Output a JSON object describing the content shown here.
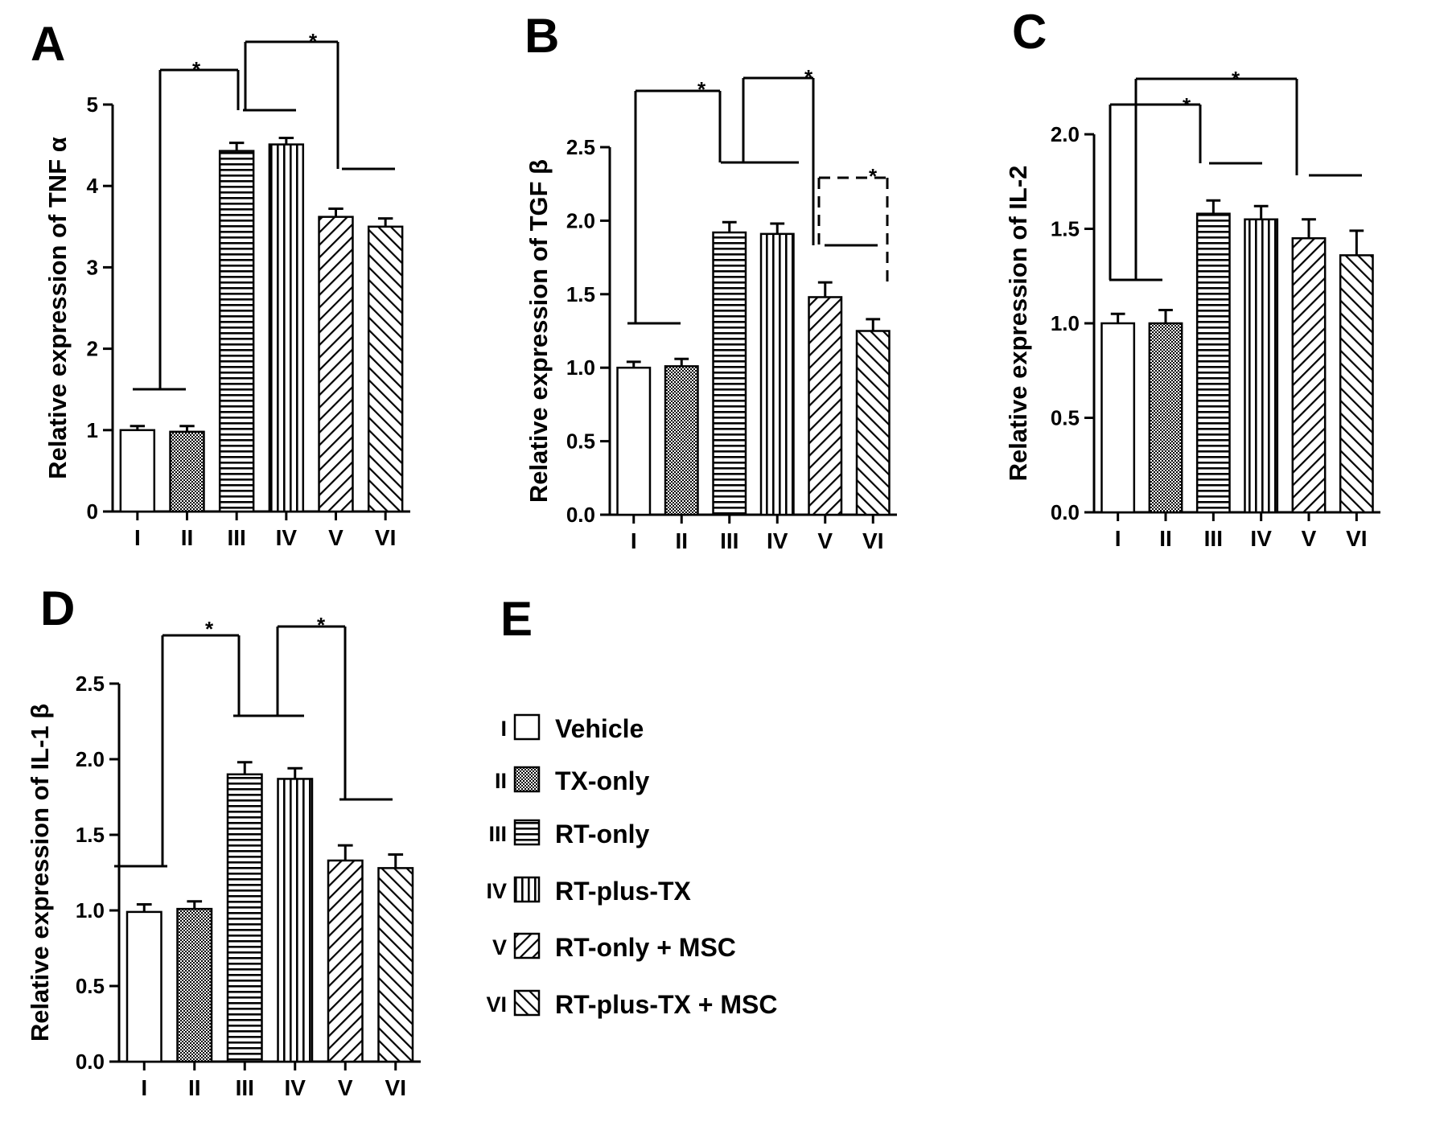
{
  "legend": {
    "letter": "E",
    "items": [
      {
        "roman": "I",
        "label": "Vehicle",
        "pattern": "none"
      },
      {
        "roman": "II",
        "label": "TX-only",
        "pattern": "dots"
      },
      {
        "roman": "III",
        "label": "RT-only",
        "pattern": "hlines"
      },
      {
        "roman": "IV",
        "label": "RT-plus-TX",
        "pattern": "vlines"
      },
      {
        "roman": "V",
        "label": "RT-only + MSC",
        "pattern": "fdiag"
      },
      {
        "roman": "VI",
        "label": "RT-plus-TX + MSC",
        "pattern": "bdiag"
      }
    ]
  },
  "chart_data": [
    {
      "id": "A",
      "type": "bar",
      "title": "A",
      "ylabel": "Relative expression of TNF α",
      "categories": [
        "I",
        "II",
        "III",
        "IV",
        "V",
        "VI"
      ],
      "values": [
        1.0,
        0.98,
        4.43,
        4.51,
        3.62,
        3.5
      ],
      "errors": [
        0.05,
        0.07,
        0.1,
        0.08,
        0.1,
        0.1
      ],
      "ylim": [
        0,
        5
      ],
      "yticks": [
        0,
        1,
        2,
        3,
        4,
        5
      ],
      "ytick_labels": [
        "0",
        "1",
        "2",
        "3",
        "4",
        "5"
      ],
      "significance": [
        {
          "from": "I-II",
          "to": "III-IV",
          "label": "*",
          "style": "solid"
        },
        {
          "from": "III-IV",
          "to": "V-VI",
          "label": "*",
          "style": "solid"
        }
      ]
    },
    {
      "id": "B",
      "type": "bar",
      "title": "B",
      "ylabel": "Relative expression of TGF β",
      "categories": [
        "I",
        "II",
        "III",
        "IV",
        "V",
        "VI"
      ],
      "values": [
        1.0,
        1.01,
        1.92,
        1.91,
        1.48,
        1.25
      ],
      "errors": [
        0.04,
        0.05,
        0.07,
        0.07,
        0.1,
        0.08
      ],
      "ylim": [
        0,
        2.5
      ],
      "yticks": [
        0,
        0.5,
        1.0,
        1.5,
        2.0,
        2.5
      ],
      "ytick_labels": [
        "0.0",
        "0.5",
        "1.0",
        "1.5",
        "2.0",
        "2.5"
      ],
      "significance": [
        {
          "from": "I-II",
          "to": "III-IV",
          "label": "*",
          "style": "solid"
        },
        {
          "from": "III-IV",
          "to": "V-VI",
          "label": "*",
          "style": "solid"
        },
        {
          "from": "V",
          "to": "VI",
          "label": "*",
          "style": "dashed"
        }
      ]
    },
    {
      "id": "C",
      "type": "bar",
      "title": "C",
      "ylabel": "Relative expression of IL-2",
      "categories": [
        "I",
        "II",
        "III",
        "IV",
        "V",
        "VI"
      ],
      "values": [
        1.0,
        1.0,
        1.58,
        1.55,
        1.45,
        1.36
      ],
      "errors": [
        0.05,
        0.07,
        0.07,
        0.07,
        0.1,
        0.13
      ],
      "ylim": [
        0,
        2.0
      ],
      "yticks": [
        0,
        0.5,
        1.0,
        1.5,
        2.0
      ],
      "ytick_labels": [
        "0.0",
        "0.5",
        "1.0",
        "1.5",
        "2.0"
      ],
      "significance": [
        {
          "from": "I-II",
          "to": "III-IV",
          "label": "*",
          "style": "solid"
        },
        {
          "from": "I-II",
          "to": "V-VI",
          "label": "*",
          "style": "solid"
        }
      ]
    },
    {
      "id": "D",
      "type": "bar",
      "title": "D",
      "ylabel": "Relative expression of IL-1 β",
      "categories": [
        "I",
        "II",
        "III",
        "IV",
        "V",
        "VI"
      ],
      "values": [
        0.99,
        1.01,
        1.9,
        1.87,
        1.33,
        1.28
      ],
      "errors": [
        0.05,
        0.05,
        0.08,
        0.07,
        0.1,
        0.09
      ],
      "ylim": [
        0,
        2.5
      ],
      "yticks": [
        0,
        0.5,
        1.0,
        1.5,
        2.0,
        2.5
      ],
      "ytick_labels": [
        "0.0",
        "0.5",
        "1.0",
        "1.5",
        "2.0",
        "2.5"
      ],
      "significance": [
        {
          "from": "I-II",
          "to": "III-IV",
          "label": "*",
          "style": "solid"
        },
        {
          "from": "III-IV",
          "to": "V-VI",
          "label": "*",
          "style": "solid"
        }
      ]
    }
  ]
}
